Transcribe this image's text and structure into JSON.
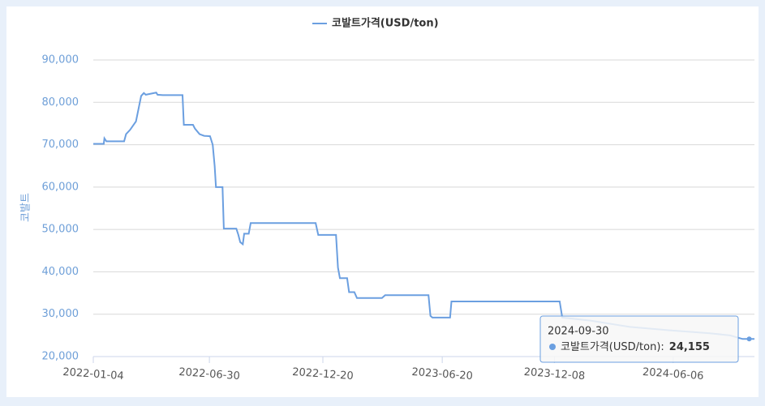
{
  "chart_data": {
    "type": "line",
    "y_label": "코발트",
    "series": [
      {
        "name": "코발트가격(USD/ton)",
        "color": "#6b9fe0",
        "x": [
          "2022-01-04",
          "2022-01-20",
          "2022-01-21",
          "2022-01-24",
          "2022-02-20",
          "2022-02-23",
          "2022-03-01",
          "2022-03-10",
          "2022-03-18",
          "2022-03-22",
          "2022-03-25",
          "2022-04-10",
          "2022-04-12",
          "2022-04-20",
          "2022-05-20",
          "2022-05-22",
          "2022-06-05",
          "2022-06-08",
          "2022-06-15",
          "2022-06-22",
          "2022-07-01",
          "2022-07-05",
          "2022-07-08",
          "2022-07-10",
          "2022-07-20",
          "2022-07-22",
          "2022-08-10",
          "2022-08-13",
          "2022-08-16",
          "2022-08-20",
          "2022-08-22",
          "2022-08-29",
          "2022-09-01",
          "2022-12-09",
          "2022-12-13",
          "2023-01-09",
          "2023-01-12",
          "2023-01-15",
          "2023-01-26",
          "2023-01-29",
          "2023-02-06",
          "2023-02-10",
          "2023-03-20",
          "2023-03-25",
          "2023-05-30",
          "2023-06-02",
          "2023-06-05",
          "2023-07-02",
          "2023-07-04",
          "2023-12-16",
          "2023-12-20",
          "2024-02-01",
          "2024-04-01",
          "2024-06-01",
          "2024-08-01",
          "2024-09-01",
          "2024-09-20",
          "2024-09-30",
          "2024-10-08"
        ],
        "values": [
          70200,
          70200,
          71500,
          70800,
          70800,
          72500,
          73500,
          75500,
          81500,
          82200,
          81800,
          82300,
          81800,
          81700,
          81700,
          74700,
          74700,
          73800,
          72500,
          72100,
          72000,
          70000,
          65000,
          60000,
          60000,
          50200,
          50200,
          48800,
          47000,
          46500,
          49000,
          49000,
          51500,
          51500,
          48700,
          48700,
          41000,
          38500,
          38500,
          35200,
          35200,
          33800,
          33800,
          34500,
          34500,
          29600,
          29200,
          29200,
          33000,
          33000,
          29200,
          28500,
          27000,
          26200,
          25500,
          25000,
          24155,
          24155,
          24155
        ]
      }
    ],
    "xlim": [
      "2022-01-04",
      "2024-10-08"
    ],
    "xticks": [
      "2022-01-04",
      "2022-06-30",
      "2022-12-20",
      "2023-06-20",
      "2023-12-08",
      "2024-06-06"
    ],
    "ylim": [
      20000,
      90000
    ],
    "yticks": [
      {
        "value": 20000,
        "label": "20,000"
      },
      {
        "value": 30000,
        "label": "30,000"
      },
      {
        "value": 40000,
        "label": "40,000"
      },
      {
        "value": 50000,
        "label": "50,000"
      },
      {
        "value": 60000,
        "label": "60,000"
      },
      {
        "value": 70000,
        "label": "70,000"
      },
      {
        "value": 80000,
        "label": "80,000"
      },
      {
        "value": 90000,
        "label": "90,000"
      }
    ],
    "grid": true,
    "legend": "top",
    "tooltip": {
      "x": "2024-09-30",
      "series_label": "코발트가격(USD/ton):",
      "value": 24155,
      "value_label": "24,155"
    }
  }
}
